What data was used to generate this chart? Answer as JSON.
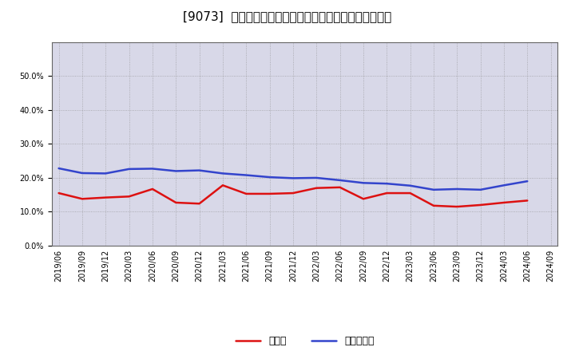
{
  "title": "[9073]  現預金、有利子負債の総資産に対する比率の推移",
  "x_labels": [
    "2019/06",
    "2019/09",
    "2019/12",
    "2020/03",
    "2020/06",
    "2020/09",
    "2020/12",
    "2021/03",
    "2021/06",
    "2021/09",
    "2021/12",
    "2022/03",
    "2022/06",
    "2022/09",
    "2022/12",
    "2023/03",
    "2023/06",
    "2023/09",
    "2023/12",
    "2024/03",
    "2024/06",
    "2024/09"
  ],
  "cash_ratio": [
    0.155,
    0.138,
    0.142,
    0.145,
    0.167,
    0.127,
    0.124,
    0.178,
    0.153,
    0.153,
    0.155,
    0.17,
    0.172,
    0.138,
    0.155,
    0.155,
    0.118,
    0.115,
    0.12,
    0.127,
    0.133,
    null
  ],
  "debt_ratio": [
    0.228,
    0.214,
    0.213,
    0.226,
    0.227,
    0.22,
    0.222,
    0.213,
    0.208,
    0.202,
    0.199,
    0.2,
    0.193,
    0.185,
    0.183,
    0.177,
    0.165,
    0.167,
    0.165,
    0.178,
    0.19,
    null
  ],
  "cash_color": "#dd1111",
  "debt_color": "#3344cc",
  "background_color": "#ffffff",
  "grid_color": "#888888",
  "plot_bg_color": "#d8d8e8",
  "ylim": [
    0.0,
    0.6
  ],
  "yticks": [
    0.0,
    0.1,
    0.2,
    0.3,
    0.4,
    0.5
  ],
  "legend_cash": "現預金",
  "legend_debt": "有利子負債",
  "title_fontsize": 11,
  "tick_fontsize": 7,
  "legend_fontsize": 9
}
